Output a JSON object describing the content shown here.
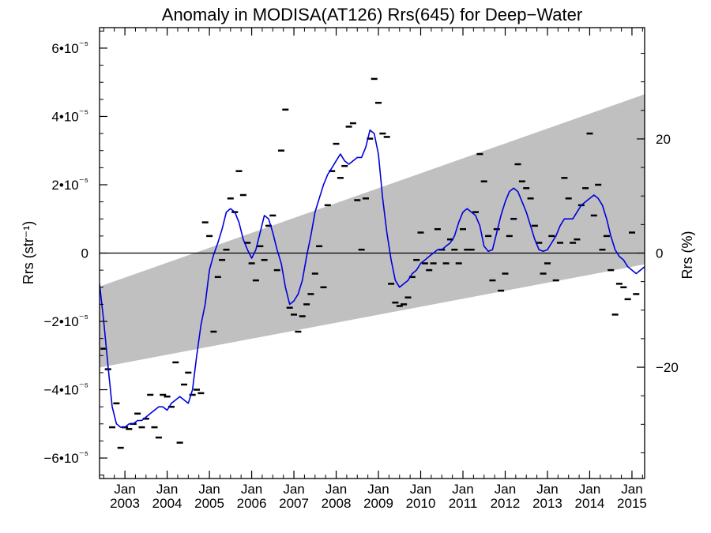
{
  "chart_data": {
    "type": "line",
    "title": "Anomaly in MODISA(AT126) Rrs(645) for Deep−Water",
    "ylabel": "Rrs (str⁻¹)",
    "y2label": "Rrs (%)",
    "x_range": [
      2002.4,
      2015.3
    ],
    "ylim": [
      -6.6e-05,
      6.6e-05
    ],
    "y2lim": [
      -39.5,
      39.5
    ],
    "y_ticks": [
      {
        "value": 6e-05,
        "label": "6•10⁻⁵"
      },
      {
        "value": 4e-05,
        "label": "4•10⁻⁵"
      },
      {
        "value": 2e-05,
        "label": "2•10⁻⁵"
      },
      {
        "value": 0,
        "label": "0"
      },
      {
        "value": -2e-05,
        "label": "−2•10⁻⁵"
      },
      {
        "value": -4e-05,
        "label": "−4•10⁻⁵"
      },
      {
        "value": -6e-05,
        "label": "−6•10⁻⁵"
      }
    ],
    "y2_ticks": [
      {
        "value": 20,
        "label": "20"
      },
      {
        "value": 0,
        "label": "0"
      },
      {
        "value": -20,
        "label": "−20"
      }
    ],
    "x_ticks": [
      {
        "value": 2003,
        "month": "Jan",
        "year": "2003"
      },
      {
        "value": 2004,
        "month": "Jan",
        "year": "2004"
      },
      {
        "value": 2005,
        "month": "Jan",
        "year": "2005"
      },
      {
        "value": 2006,
        "month": "Jan",
        "year": "2006"
      },
      {
        "value": 2007,
        "month": "Jan",
        "year": "2007"
      },
      {
        "value": 2008,
        "month": "Jan",
        "year": "2008"
      },
      {
        "value": 2009,
        "month": "Jan",
        "year": "2009"
      },
      {
        "value": 2010,
        "month": "Jan",
        "year": "2010"
      },
      {
        "value": 2011,
        "month": "Jan",
        "year": "2011"
      },
      {
        "value": 2012,
        "month": "Jan",
        "year": "2012"
      },
      {
        "value": 2013,
        "month": "Jan",
        "year": "2013"
      },
      {
        "value": 2014,
        "month": "Jan",
        "year": "2014"
      },
      {
        "value": 2015,
        "month": "Jan",
        "year": "2015"
      }
    ],
    "band": {
      "color": "#c0c0c0",
      "upper": [
        [
          2002.4,
          -9.8e-06
        ],
        [
          2015.3,
          4.65e-05
        ]
      ],
      "lower": [
        [
          2002.4,
          -3.35e-05
        ],
        [
          2015.3,
          -3.3e-06
        ]
      ]
    },
    "series": [
      {
        "kind": "smoothed",
        "color": "#0000dd",
        "points": [
          [
            2002.4,
            -9e-06
          ],
          [
            2002.5,
            -2e-05
          ],
          [
            2002.6,
            -3.3e-05
          ],
          [
            2002.7,
            -4.5e-05
          ],
          [
            2002.8,
            -5e-05
          ],
          [
            2002.9,
            -5.1e-05
          ],
          [
            2003.0,
            -5.1e-05
          ],
          [
            2003.1,
            -5e-05
          ],
          [
            2003.2,
            -5e-05
          ],
          [
            2003.3,
            -4.9e-05
          ],
          [
            2003.4,
            -4.9e-05
          ],
          [
            2003.5,
            -4.8e-05
          ],
          [
            2003.6,
            -4.7e-05
          ],
          [
            2003.7,
            -4.6e-05
          ],
          [
            2003.8,
            -4.5e-05
          ],
          [
            2003.9,
            -4.5e-05
          ],
          [
            2004.0,
            -4.6e-05
          ],
          [
            2004.1,
            -4.4e-05
          ],
          [
            2004.2,
            -4.3e-05
          ],
          [
            2004.3,
            -4.2e-05
          ],
          [
            2004.4,
            -4.3e-05
          ],
          [
            2004.5,
            -4.4e-05
          ],
          [
            2004.6,
            -4e-05
          ],
          [
            2004.7,
            -3e-05
          ],
          [
            2004.8,
            -2.1e-05
          ],
          [
            2004.9,
            -1.5e-05
          ],
          [
            2005.0,
            -5e-06
          ],
          [
            2005.1,
            -5e-07
          ],
          [
            2005.2,
            3e-06
          ],
          [
            2005.3,
            7e-06
          ],
          [
            2005.4,
            1.2e-05
          ],
          [
            2005.5,
            1.3e-05
          ],
          [
            2005.6,
            1.2e-05
          ],
          [
            2005.7,
            9e-06
          ],
          [
            2005.8,
            4e-06
          ],
          [
            2005.9,
            1e-06
          ],
          [
            2006.0,
            -1.5e-06
          ],
          [
            2006.1,
            1e-06
          ],
          [
            2006.2,
            6e-06
          ],
          [
            2006.3,
            1.1e-05
          ],
          [
            2006.4,
            1e-05
          ],
          [
            2006.5,
            6e-06
          ],
          [
            2006.6,
            1e-06
          ],
          [
            2006.7,
            -3e-06
          ],
          [
            2006.8,
            -1e-05
          ],
          [
            2006.9,
            -1.5e-05
          ],
          [
            2007.0,
            -1.4e-05
          ],
          [
            2007.1,
            -1.2e-05
          ],
          [
            2007.2,
            -8e-06
          ],
          [
            2007.3,
            -1e-06
          ],
          [
            2007.4,
            5e-06
          ],
          [
            2007.5,
            1.2e-05
          ],
          [
            2007.6,
            1.6e-05
          ],
          [
            2007.7,
            2e-05
          ],
          [
            2007.8,
            2.3e-05
          ],
          [
            2007.9,
            2.5e-05
          ],
          [
            2008.0,
            2.7e-05
          ],
          [
            2008.1,
            2.9e-05
          ],
          [
            2008.2,
            2.7e-05
          ],
          [
            2008.3,
            2.6e-05
          ],
          [
            2008.4,
            2.7e-05
          ],
          [
            2008.5,
            2.8e-05
          ],
          [
            2008.6,
            2.8e-05
          ],
          [
            2008.7,
            3.1e-05
          ],
          [
            2008.8,
            3.6e-05
          ],
          [
            2008.9,
            3.5e-05
          ],
          [
            2009.0,
            2.9e-05
          ],
          [
            2009.1,
            1.6e-05
          ],
          [
            2009.2,
            6e-06
          ],
          [
            2009.3,
            -2e-06
          ],
          [
            2009.4,
            -8e-06
          ],
          [
            2009.5,
            -1e-05
          ],
          [
            2009.6,
            -9e-06
          ],
          [
            2009.7,
            -8e-06
          ],
          [
            2009.8,
            -6e-06
          ],
          [
            2009.9,
            -5e-06
          ],
          [
            2010.0,
            -3e-06
          ],
          [
            2010.1,
            -2e-06
          ],
          [
            2010.2,
            -1e-06
          ],
          [
            2010.3,
            0.0
          ],
          [
            2010.4,
            1e-06
          ],
          [
            2010.5,
            1e-06
          ],
          [
            2010.6,
            2e-06
          ],
          [
            2010.7,
            3e-06
          ],
          [
            2010.8,
            5e-06
          ],
          [
            2010.9,
            9e-06
          ],
          [
            2011.0,
            1.2e-05
          ],
          [
            2011.1,
            1.3e-05
          ],
          [
            2011.2,
            1.2e-05
          ],
          [
            2011.3,
            1.1e-05
          ],
          [
            2011.4,
            8e-06
          ],
          [
            2011.5,
            2e-06
          ],
          [
            2011.6,
            5e-07
          ],
          [
            2011.7,
            1e-06
          ],
          [
            2011.8,
            6e-06
          ],
          [
            2011.9,
            1.1e-05
          ],
          [
            2012.0,
            1.5e-05
          ],
          [
            2012.1,
            1.8e-05
          ],
          [
            2012.2,
            1.9e-05
          ],
          [
            2012.3,
            1.8e-05
          ],
          [
            2012.4,
            1.5e-05
          ],
          [
            2012.5,
            1.2e-05
          ],
          [
            2012.6,
            8e-06
          ],
          [
            2012.7,
            4e-06
          ],
          [
            2012.8,
            1e-06
          ],
          [
            2012.9,
            5e-07
          ],
          [
            2013.0,
            1e-06
          ],
          [
            2013.1,
            3e-06
          ],
          [
            2013.2,
            5e-06
          ],
          [
            2013.3,
            8e-06
          ],
          [
            2013.4,
            1e-05
          ],
          [
            2013.5,
            1e-05
          ],
          [
            2013.6,
            1e-05
          ],
          [
            2013.7,
            1.2e-05
          ],
          [
            2013.8,
            1.4e-05
          ],
          [
            2013.9,
            1.5e-05
          ],
          [
            2014.0,
            1.6e-05
          ],
          [
            2014.1,
            1.7e-05
          ],
          [
            2014.2,
            1.6e-05
          ],
          [
            2014.3,
            1.4e-05
          ],
          [
            2014.4,
            1e-05
          ],
          [
            2014.5,
            5e-06
          ],
          [
            2014.6,
            1e-06
          ],
          [
            2014.7,
            -1e-06
          ],
          [
            2014.8,
            -2e-06
          ],
          [
            2014.9,
            -4e-06
          ],
          [
            2015.0,
            -5e-06
          ],
          [
            2015.1,
            -6e-06
          ],
          [
            2015.2,
            -5e-06
          ],
          [
            2015.3,
            -4e-06
          ]
        ]
      },
      {
        "kind": "monthly",
        "color": "#000000",
        "marker": "dash",
        "points": [
          [
            2002.5,
            -2.8e-05
          ],
          [
            2002.6,
            -3.4e-05
          ],
          [
            2002.7,
            -5.1e-05
          ],
          [
            2002.8,
            -4.4e-05
          ],
          [
            2002.9,
            -5.7e-05
          ],
          [
            2003.0,
            -5.1e-05
          ],
          [
            2003.1,
            -5.15e-05
          ],
          [
            2003.2,
            -5e-05
          ],
          [
            2003.3,
            -4.7e-05
          ],
          [
            2003.4,
            -5.1e-05
          ],
          [
            2003.5,
            -4.85e-05
          ],
          [
            2003.6,
            -4.15e-05
          ],
          [
            2003.7,
            -5.1e-05
          ],
          [
            2003.8,
            -5.4e-05
          ],
          [
            2003.9,
            -4.15e-05
          ],
          [
            2004.0,
            -4.2e-05
          ],
          [
            2004.1,
            -4.5e-05
          ],
          [
            2004.2,
            -3.2e-05
          ],
          [
            2004.3,
            -5.55e-05
          ],
          [
            2004.4,
            -3.85e-05
          ],
          [
            2004.5,
            -3.5e-05
          ],
          [
            2004.6,
            -4.15e-05
          ],
          [
            2004.7,
            -4e-05
          ],
          [
            2004.8,
            -4.1e-05
          ],
          [
            2004.9,
            9e-06
          ],
          [
            2005.0,
            5e-06
          ],
          [
            2005.1,
            -2.3e-05
          ],
          [
            2005.2,
            -7e-06
          ],
          [
            2005.3,
            -2e-06
          ],
          [
            2005.4,
            1e-06
          ],
          [
            2005.5,
            1.6e-05
          ],
          [
            2005.6,
            1.2e-05
          ],
          [
            2005.7,
            2.4e-05
          ],
          [
            2005.8,
            1.7e-05
          ],
          [
            2005.9,
            3e-06
          ],
          [
            2006.0,
            -3e-06
          ],
          [
            2006.1,
            -8e-06
          ],
          [
            2006.2,
            2e-06
          ],
          [
            2006.3,
            -2e-06
          ],
          [
            2006.4,
            8e-06
          ],
          [
            2006.5,
            1.1e-05
          ],
          [
            2006.6,
            -5e-06
          ],
          [
            2006.7,
            3e-05
          ],
          [
            2006.8,
            4.2e-05
          ],
          [
            2006.9,
            -1.6e-05
          ],
          [
            2007.0,
            -1.8e-05
          ],
          [
            2007.1,
            -2.3e-05
          ],
          [
            2007.2,
            -1.85e-05
          ],
          [
            2007.3,
            -1.5e-05
          ],
          [
            2007.4,
            -1.2e-05
          ],
          [
            2007.5,
            -6e-06
          ],
          [
            2007.6,
            2e-06
          ],
          [
            2007.7,
            -1e-05
          ],
          [
            2007.8,
            1.4e-05
          ],
          [
            2007.9,
            2.4e-05
          ],
          [
            2008.0,
            3.2e-05
          ],
          [
            2008.1,
            2.2e-05
          ],
          [
            2008.2,
            2.55e-05
          ],
          [
            2008.3,
            3.7e-05
          ],
          [
            2008.4,
            3.8e-05
          ],
          [
            2008.5,
            1.55e-05
          ],
          [
            2008.6,
            1e-06
          ],
          [
            2008.7,
            1.6e-05
          ],
          [
            2008.8,
            3.35e-05
          ],
          [
            2008.9,
            5.1e-05
          ],
          [
            2009.0,
            4.4e-05
          ],
          [
            2009.1,
            3.5e-05
          ],
          [
            2009.2,
            3.4e-05
          ],
          [
            2009.3,
            -9e-06
          ],
          [
            2009.4,
            -1.45e-05
          ],
          [
            2009.5,
            -1.55e-05
          ],
          [
            2009.6,
            -1.5e-05
          ],
          [
            2009.7,
            -1.3e-05
          ],
          [
            2009.8,
            -7e-06
          ],
          [
            2009.9,
            -2e-06
          ],
          [
            2010.0,
            6e-06
          ],
          [
            2010.1,
            -3e-06
          ],
          [
            2010.2,
            -5e-06
          ],
          [
            2010.3,
            -3e-06
          ],
          [
            2010.4,
            7e-06
          ],
          [
            2010.5,
            1e-06
          ],
          [
            2010.6,
            -3e-06
          ],
          [
            2010.7,
            4e-06
          ],
          [
            2010.8,
            1e-06
          ],
          [
            2010.9,
            -3e-06
          ],
          [
            2011.0,
            7e-06
          ],
          [
            2011.1,
            1e-06
          ],
          [
            2011.2,
            1e-06
          ],
          [
            2011.3,
            1.2e-05
          ],
          [
            2011.4,
            2.9e-05
          ],
          [
            2011.5,
            2.1e-05
          ],
          [
            2011.6,
            5e-06
          ],
          [
            2011.7,
            -8e-06
          ],
          [
            2011.8,
            7e-06
          ],
          [
            2011.9,
            -1.1e-05
          ],
          [
            2012.0,
            -6e-06
          ],
          [
            2012.1,
            5e-06
          ],
          [
            2012.2,
            1e-05
          ],
          [
            2012.3,
            2.6e-05
          ],
          [
            2012.4,
            2.1e-05
          ],
          [
            2012.5,
            1.9e-05
          ],
          [
            2012.6,
            1.6e-05
          ],
          [
            2012.7,
            8e-06
          ],
          [
            2012.8,
            3e-06
          ],
          [
            2012.9,
            -6e-06
          ],
          [
            2013.0,
            -3e-06
          ],
          [
            2013.1,
            5e-06
          ],
          [
            2013.2,
            -8e-06
          ],
          [
            2013.3,
            3e-06
          ],
          [
            2013.4,
            2.2e-05
          ],
          [
            2013.5,
            1.6e-05
          ],
          [
            2013.6,
            3e-06
          ],
          [
            2013.7,
            4e-06
          ],
          [
            2013.8,
            1.4e-05
          ],
          [
            2013.9,
            1.9e-05
          ],
          [
            2014.0,
            3.5e-05
          ],
          [
            2014.1,
            1.1e-05
          ],
          [
            2014.2,
            2e-05
          ],
          [
            2014.3,
            1e-06
          ],
          [
            2014.4,
            5e-06
          ],
          [
            2014.5,
            -5e-06
          ],
          [
            2014.6,
            -1.8e-05
          ],
          [
            2014.7,
            -9e-06
          ],
          [
            2014.8,
            -1e-05
          ],
          [
            2014.9,
            -1.35e-05
          ],
          [
            2015.0,
            6e-06
          ],
          [
            2015.1,
            -1.2e-05
          ]
        ]
      }
    ]
  }
}
